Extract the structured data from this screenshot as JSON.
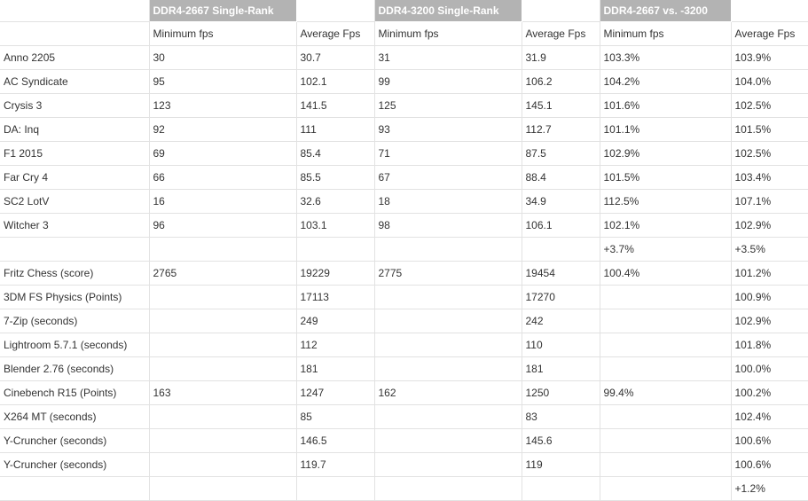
{
  "table": {
    "groups": [
      "DDR4-2667 Single-Rank",
      "DDR4-3200 Single-Rank",
      "DDR4-2667 vs. -3200"
    ],
    "subheaders": [
      "",
      "Minimum fps",
      "Average Fps",
      "Minimum fps",
      "Average Fps",
      "Minimum fps",
      "Average Fps"
    ],
    "rows": [
      [
        "Anno 2205",
        "30",
        "30.7",
        "31",
        "31.9",
        "103.3%",
        "103.9%"
      ],
      [
        "AC Syndicate",
        "95",
        "102.1",
        "99",
        "106.2",
        "104.2%",
        "104.0%"
      ],
      [
        "Crysis 3",
        "123",
        "141.5",
        "125",
        "145.1",
        "101.6%",
        "102.5%"
      ],
      [
        "DA: Inq",
        "92",
        "111",
        "93",
        "112.7",
        "101.1%",
        "101.5%"
      ],
      [
        "F1 2015",
        "69",
        "85.4",
        "71",
        "87.5",
        "102.9%",
        "102.5%"
      ],
      [
        "Far Cry 4",
        "66",
        "85.5",
        "67",
        "88.4",
        "101.5%",
        "103.4%"
      ],
      [
        "SC2 LotV",
        "16",
        "32.6",
        "18",
        "34.9",
        "112.5%",
        "107.1%"
      ],
      [
        "Witcher 3",
        "96",
        "103.1",
        "98",
        "106.1",
        "102.1%",
        "102.9%"
      ],
      [
        "",
        "",
        "",
        "",
        "",
        "+3.7%",
        "+3.5%"
      ],
      [
        "Fritz Chess (score)",
        "2765",
        "19229",
        "2775",
        "19454",
        "100.4%",
        "101.2%"
      ],
      [
        "3DM FS Physics (Points)",
        "",
        "17113",
        "",
        "17270",
        "",
        "100.9%"
      ],
      [
        "7-Zip (seconds)",
        "",
        "249",
        "",
        "242",
        "",
        "102.9%"
      ],
      [
        "Lightroom 5.7.1 (seconds)",
        "",
        "112",
        "",
        "110",
        "",
        "101.8%"
      ],
      [
        "Blender 2.76 (seconds)",
        "",
        "181",
        "",
        "181",
        "",
        "100.0%"
      ],
      [
        "Cinebench R15 (Points)",
        "163",
        "1247",
        "162",
        "1250",
        "99.4%",
        "100.2%"
      ],
      [
        "X264 MT (seconds)",
        "",
        "85",
        "",
        "83",
        "",
        "102.4%"
      ],
      [
        "Y-Cruncher (seconds)",
        "",
        "146.5",
        "",
        "145.6",
        "",
        "100.6%"
      ],
      [
        "Y-Cruncher (seconds)",
        "",
        "119.7",
        "",
        "119",
        "",
        "100.6%"
      ],
      [
        "",
        "",
        "",
        "",
        "",
        "",
        "+1.2%"
      ]
    ]
  }
}
